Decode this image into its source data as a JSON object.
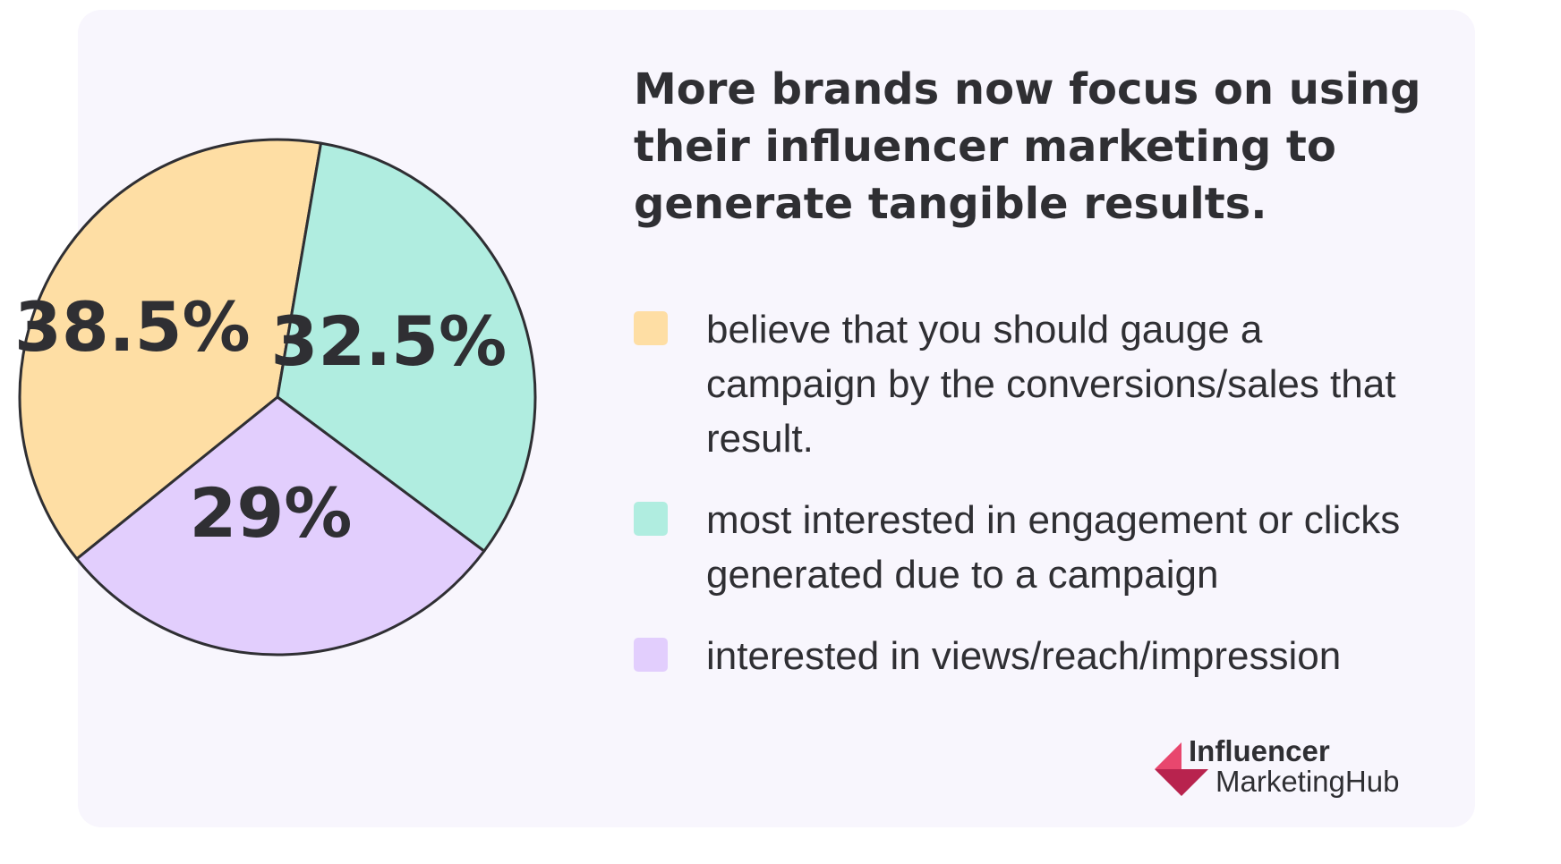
{
  "chart_data": {
    "type": "pie",
    "title": "More brands now focus on using their influencer marketing to generate tangible results.",
    "slices": [
      {
        "label": "believe that you should gauge a campaign by the conversions/sales that result.",
        "value": 38.5,
        "display": "38.5%",
        "color": "#fedea4"
      },
      {
        "label": "most interested in engagement or clicks generated due to a campaign",
        "value": 32.5,
        "display": "32.5%",
        "color": "#b0ede0"
      },
      {
        "label": "interested in views/reach/impression",
        "value": 29,
        "display": "29%",
        "color": "#e2cefd"
      }
    ],
    "legend_placement": "right"
  },
  "colors": {
    "card_background": "#f8f6fd",
    "text": "#2f2f33",
    "slice_stroke": "#2f2f33",
    "brand_pink": "#e8476e",
    "brand_dark_pink": "#b8234e"
  },
  "logo": {
    "line1": "Influencer",
    "line2": "MarketingHub",
    "icon": "influencer-marketing-hub-logo-icon"
  }
}
